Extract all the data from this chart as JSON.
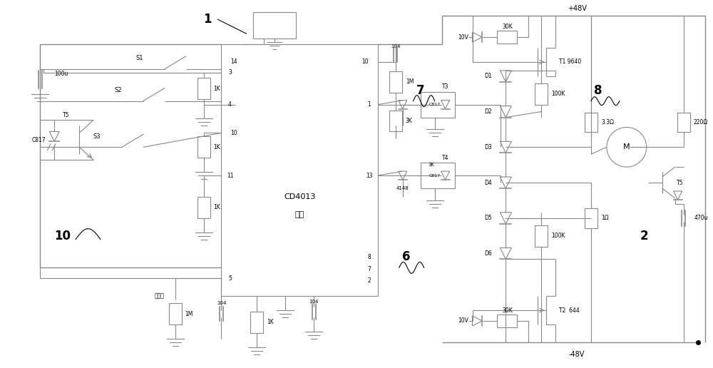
{
  "bg_color": "#ffffff",
  "line_color": "#888888",
  "text_color": "#000000",
  "comp_color": "#888888",
  "fig_width": 10.0,
  "fig_height": 5.16,
  "labels": {
    "plus48V": "+48V",
    "minus48V": "-48V",
    "num1": "1",
    "num2": "2",
    "num6": "6",
    "num7": "7",
    "num8": "8",
    "num10": "10",
    "cd4013": "CD4013",
    "xinpian": "芯片",
    "xiafuwei": "下复位",
    "S1": "S1",
    "S2": "S2",
    "S3": "S3",
    "cap100u": "100u",
    "T5L": "T5",
    "C817L": "C817",
    "r1K_1": "1K",
    "r1K_2": "1K",
    "r1K_3": "1K",
    "r104_top": "104",
    "r1M_A": "1M",
    "r3K_A": "3K",
    "r104_bot": "104",
    "r1M_bot": "1M",
    "r1K_bot": "1K",
    "r104_r": "104",
    "T3": "T3",
    "T4": "T4",
    "C817_T3": "C817",
    "C817_T4": "C817",
    "d4148": "4148",
    "d10V_top": "10V",
    "r30K_top": "30K",
    "T1_lbl": "T1 9640",
    "D1": "D1",
    "D2": "D2",
    "D3": "D3",
    "D4": "D4",
    "D5": "D5",
    "D6": "D6",
    "r100K_top": "100K",
    "r100K_bot": "100K",
    "r3p3": "3.3Ω",
    "r1ohm": "1Ω",
    "r220": "220Ω",
    "c470u": "470u",
    "motorM": "M",
    "d10V_bot": "10V",
    "r30K_bot": "30K",
    "T2_lbl": "T2  644",
    "T5R": "T5",
    "p3": "3",
    "p4": "4",
    "p10L": "10",
    "p11": "11",
    "p5": "5",
    "p14": "14",
    "p10R": "10",
    "p1": "1",
    "p13": "13",
    "p8": "8",
    "p7": "7",
    "p2": "2"
  }
}
